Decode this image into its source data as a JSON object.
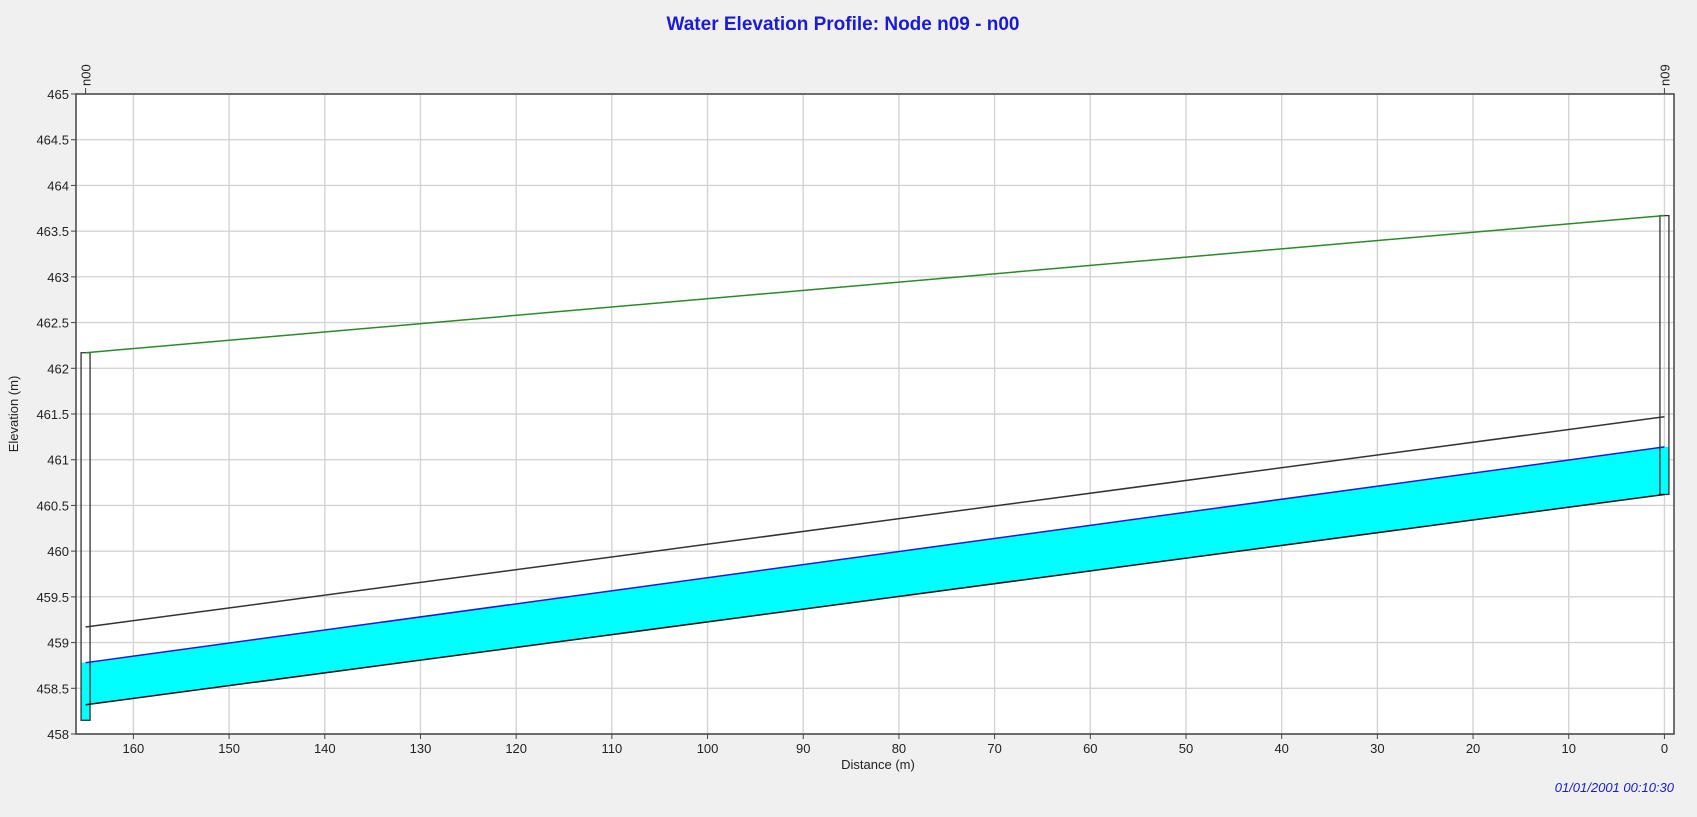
{
  "chart_data": {
    "type": "line",
    "title": "Water Elevation Profile: Node n09 - n00",
    "xlabel": "Distance (m)",
    "ylabel": "Elevation (m)",
    "x_reversed": true,
    "xlim": [
      166,
      -1
    ],
    "ylim": [
      458,
      465
    ],
    "x_ticks": [
      160,
      150,
      140,
      130,
      120,
      110,
      100,
      90,
      80,
      70,
      60,
      50,
      40,
      30,
      20,
      10,
      0
    ],
    "y_ticks": [
      458,
      458.5,
      459,
      459.5,
      460,
      460.5,
      461,
      461.5,
      462,
      462.5,
      463,
      463.5,
      464,
      464.5,
      465
    ],
    "grid": true,
    "timestamp": "01/01/2001 00:10:30",
    "nodes": [
      {
        "name": "n00",
        "distance": 165,
        "invert": 458.15,
        "rim": 462.17
      },
      {
        "name": "n09",
        "distance": 0,
        "invert": 460.62,
        "rim": 463.67
      }
    ],
    "series": [
      {
        "role": "ground",
        "color": "#2a8a2a",
        "x": [
          165,
          0
        ],
        "y": [
          462.17,
          463.67
        ]
      },
      {
        "role": "conduit-crown",
        "color": "#333333",
        "x": [
          165,
          0
        ],
        "y": [
          459.17,
          461.47
        ]
      },
      {
        "role": "water-surface",
        "color": "#1a1adb",
        "x": [
          165,
          0
        ],
        "y": [
          458.78,
          461.14
        ]
      },
      {
        "role": "conduit-invert",
        "color": "#111111",
        "x": [
          165,
          0
        ],
        "y": [
          458.32,
          460.62
        ]
      }
    ],
    "water_fill_color": "#00ffff"
  }
}
